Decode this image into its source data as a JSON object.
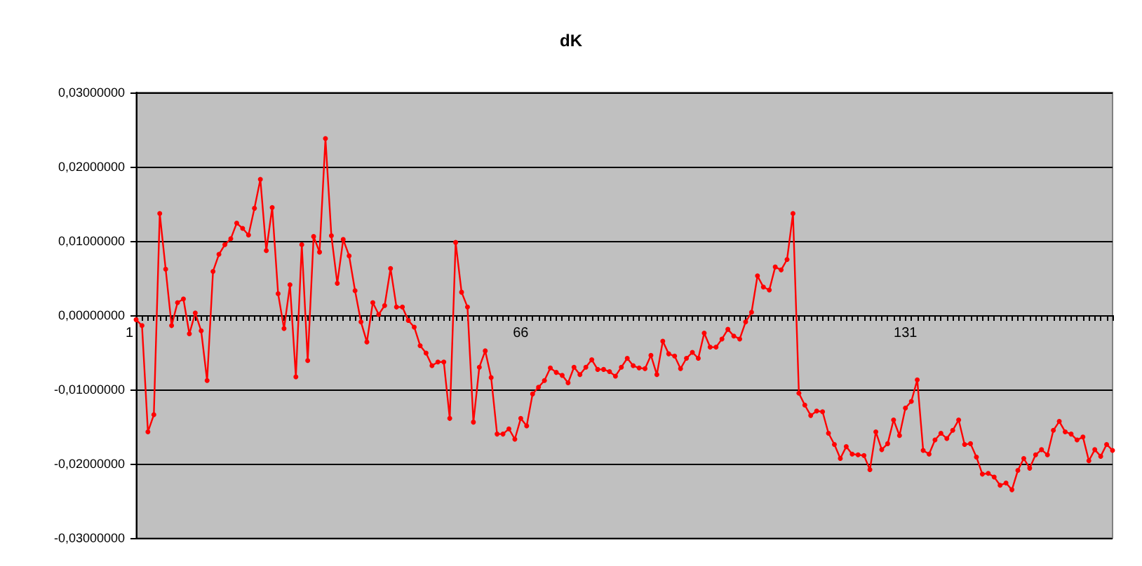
{
  "chart_data": {
    "type": "line",
    "title": "dK",
    "categories": [
      "1",
      null,
      null,
      null,
      null,
      null,
      null,
      null,
      null,
      null,
      null,
      null,
      null,
      null,
      null,
      null,
      null,
      null,
      null,
      null,
      null,
      null,
      null,
      null,
      null,
      null,
      null,
      null,
      null,
      null,
      null,
      null,
      null,
      null,
      null,
      null,
      null,
      null,
      null,
      null,
      null,
      null,
      null,
      null,
      null,
      null,
      null,
      null,
      null,
      null,
      null,
      null,
      null,
      null,
      null,
      null,
      null,
      null,
      null,
      null,
      null,
      null,
      null,
      null,
      null,
      "66",
      null,
      null,
      null,
      null,
      null,
      null,
      null,
      null,
      null,
      null,
      null,
      null,
      null,
      null,
      null,
      null,
      null,
      null,
      null,
      null,
      null,
      null,
      null,
      null,
      null,
      null,
      null,
      null,
      null,
      null,
      null,
      null,
      null,
      null,
      null,
      null,
      null,
      null,
      null,
      null,
      null,
      null,
      null,
      null,
      null,
      null,
      null,
      null,
      null,
      null,
      null,
      null,
      null,
      null,
      null,
      null,
      null,
      null,
      null,
      null,
      null,
      null,
      null,
      null,
      "131",
      null,
      null,
      null,
      null,
      null,
      null,
      null,
      null,
      null,
      null,
      null,
      null,
      null,
      null,
      null,
      null,
      null,
      null,
      null,
      null,
      null,
      null,
      null,
      null,
      null,
      null,
      null,
      null,
      null,
      null,
      null,
      null,
      null,
      null,
      null
    ],
    "series": [
      {
        "color": "#ff0000",
        "values": [
          -0.0006,
          -0.0014,
          -0.0157,
          -0.0134,
          0.0137,
          0.0062,
          -0.0014,
          0.0017,
          0.0022,
          -0.0025,
          0.0003,
          -0.0021,
          -0.0088,
          0.0059,
          0.0082,
          0.0095,
          0.0103,
          0.0124,
          0.0117,
          0.0108,
          0.0144,
          0.0183,
          0.0087,
          0.0145,
          0.0029,
          -0.0018,
          0.0041,
          -0.0083,
          0.0095,
          -0.0061,
          0.0106,
          0.0085,
          0.0238,
          0.0107,
          0.0043,
          0.0102,
          0.008,
          0.0033,
          -0.0009,
          -0.0036,
          0.0017,
          0.0001,
          0.0013,
          0.0063,
          0.0011,
          0.0011,
          -0.0007,
          -0.0016,
          -0.0041,
          -0.0051,
          -0.0068,
          -0.0063,
          -0.0063,
          -0.0139,
          0.0098,
          0.0031,
          0.0011,
          -0.0144,
          -0.007,
          -0.0048,
          -0.0084,
          -0.016,
          -0.016,
          -0.0153,
          -0.0167,
          -0.0139,
          -0.0149,
          -0.0106,
          -0.0097,
          -0.0088,
          -0.0071,
          -0.0077,
          -0.0081,
          -0.0091,
          -0.007,
          -0.008,
          -0.007,
          -0.006,
          -0.0073,
          -0.0073,
          -0.0076,
          -0.0082,
          -0.007,
          -0.0058,
          -0.0068,
          -0.0071,
          -0.0072,
          -0.0054,
          -0.008,
          -0.0035,
          -0.0052,
          -0.0055,
          -0.0072,
          -0.0058,
          -0.005,
          -0.0058,
          -0.0024,
          -0.0043,
          -0.0043,
          -0.0032,
          -0.0019,
          -0.0028,
          -0.0032,
          -0.0009,
          0.0004,
          0.0053,
          0.0038,
          0.0034,
          0.0065,
          0.0061,
          0.0075,
          0.0137,
          -0.0105,
          -0.0121,
          -0.0135,
          -0.0129,
          -0.013,
          -0.0159,
          -0.0174,
          -0.0193,
          -0.0177,
          -0.0187,
          -0.0188,
          -0.0189,
          -0.0208,
          -0.0157,
          -0.0181,
          -0.0173,
          -0.0141,
          -0.0162,
          -0.0125,
          -0.0116,
          -0.0087,
          -0.0182,
          -0.0187,
          -0.0168,
          -0.0159,
          -0.0166,
          -0.0155,
          -0.0141,
          -0.0174,
          -0.0173,
          -0.0191,
          -0.0214,
          -0.0213,
          -0.0218,
          -0.0229,
          -0.0226,
          -0.0235,
          -0.0209,
          -0.0193,
          -0.0206,
          -0.0188,
          -0.0181,
          -0.0188,
          -0.0155,
          -0.0143,
          -0.0157,
          -0.016,
          -0.0168,
          -0.0164,
          -0.0196,
          -0.0181,
          -0.019,
          -0.0174,
          -0.0182
        ]
      }
    ],
    "ylim": [
      -0.03,
      0.03
    ],
    "yticks": [
      {
        "value": -0.03,
        "label": "-0,03000000"
      },
      {
        "value": -0.02,
        "label": "-0,02000000"
      },
      {
        "value": -0.01,
        "label": "-0,01000000"
      },
      {
        "value": 0,
        "label": "0,00000000"
      },
      {
        "value": 0.01,
        "label": "0,01000000"
      },
      {
        "value": 0.02,
        "label": "0,02000000"
      },
      {
        "value": 0.03,
        "label": "0,03000000"
      }
    ],
    "grid": "y",
    "marker": "circle",
    "line_style": "solid"
  }
}
